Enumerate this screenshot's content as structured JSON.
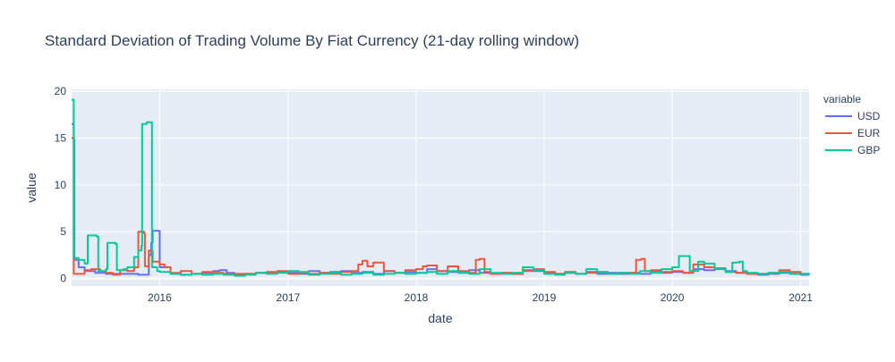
{
  "chart_data": {
    "type": "line",
    "title": "Standard Deviation of Trading Volume By Fiat Currency (21-day rolling window)",
    "xlabel": "date",
    "ylabel": "value",
    "x_range": [
      "2015-04-25",
      "2021-01-25"
    ],
    "ylim": [
      -0.8,
      20.2
    ],
    "x_ticks": [
      {
        "date": "2016-01-01",
        "label": "2016"
      },
      {
        "date": "2017-01-01",
        "label": "2017"
      },
      {
        "date": "2018-01-01",
        "label": "2018"
      },
      {
        "date": "2019-01-01",
        "label": "2019"
      },
      {
        "date": "2020-01-01",
        "label": "2020"
      },
      {
        "date": "2021-01-01",
        "label": "2021"
      }
    ],
    "y_ticks": [
      0,
      5,
      10,
      15,
      20
    ],
    "grid": true,
    "legend": {
      "title": "variable",
      "position": "right"
    },
    "series": [
      {
        "name": "USD",
        "color": "#636efa",
        "points": [
          [
            "2015-04-25",
            16.5
          ],
          [
            "2015-05-01",
            14.8
          ],
          [
            "2015-05-03",
            2.0
          ],
          [
            "2015-05-15",
            1.2
          ],
          [
            "2015-06-01",
            0.8
          ],
          [
            "2015-07-01",
            0.6
          ],
          [
            "2015-08-01",
            0.5
          ],
          [
            "2015-09-01",
            0.5
          ],
          [
            "2015-10-01",
            0.5
          ],
          [
            "2015-11-01",
            0.4
          ],
          [
            "2015-11-25",
            0.4
          ],
          [
            "2015-12-01",
            2.5
          ],
          [
            "2015-12-08",
            3.8
          ],
          [
            "2015-12-12",
            5.1
          ],
          [
            "2015-12-28",
            5.1
          ],
          [
            "2016-01-01",
            1.2
          ],
          [
            "2016-02-01",
            0.5
          ],
          [
            "2016-03-01",
            0.4
          ],
          [
            "2016-04-01",
            0.5
          ],
          [
            "2016-05-01",
            0.6
          ],
          [
            "2016-06-01",
            0.8
          ],
          [
            "2016-06-20",
            0.9
          ],
          [
            "2016-07-10",
            0.6
          ],
          [
            "2016-08-01",
            0.4
          ],
          [
            "2016-09-01",
            0.5
          ],
          [
            "2016-10-01",
            0.6
          ],
          [
            "2016-11-01",
            0.6
          ],
          [
            "2016-12-01",
            0.7
          ],
          [
            "2017-01-01",
            0.6
          ],
          [
            "2017-02-01",
            0.5
          ],
          [
            "2017-03-01",
            0.8
          ],
          [
            "2017-04-01",
            0.6
          ],
          [
            "2017-05-01",
            0.7
          ],
          [
            "2017-06-01",
            0.8
          ],
          [
            "2017-07-01",
            0.6
          ],
          [
            "2017-08-01",
            0.7
          ],
          [
            "2017-09-01",
            0.5
          ],
          [
            "2017-10-01",
            0.8
          ],
          [
            "2017-11-01",
            0.6
          ],
          [
            "2017-12-01",
            0.7
          ],
          [
            "2018-01-01",
            0.6
          ],
          [
            "2018-02-01",
            1.0
          ],
          [
            "2018-03-01",
            0.8
          ],
          [
            "2018-04-01",
            0.7
          ],
          [
            "2018-05-01",
            0.6
          ],
          [
            "2018-06-01",
            0.9
          ],
          [
            "2018-07-01",
            0.6
          ],
          [
            "2018-08-01",
            0.5
          ],
          [
            "2018-09-01",
            0.6
          ],
          [
            "2018-10-01",
            0.5
          ],
          [
            "2018-11-01",
            0.9
          ],
          [
            "2018-12-01",
            0.8
          ],
          [
            "2019-01-01",
            0.6
          ],
          [
            "2019-02-01",
            0.5
          ],
          [
            "2019-03-01",
            0.6
          ],
          [
            "2019-04-01",
            0.5
          ],
          [
            "2019-05-01",
            0.7
          ],
          [
            "2019-06-01",
            0.5
          ],
          [
            "2019-07-01",
            0.6
          ],
          [
            "2019-08-01",
            0.5
          ],
          [
            "2019-09-01",
            0.6
          ],
          [
            "2019-10-01",
            0.5
          ],
          [
            "2019-11-01",
            0.8
          ],
          [
            "2019-12-01",
            0.6
          ],
          [
            "2020-01-01",
            0.7
          ],
          [
            "2020-02-01",
            0.6
          ],
          [
            "2020-03-01",
            1.0
          ],
          [
            "2020-04-01",
            0.9
          ],
          [
            "2020-05-01",
            1.1
          ],
          [
            "2020-06-01",
            0.8
          ],
          [
            "2020-07-01",
            0.6
          ],
          [
            "2020-08-01",
            0.5
          ],
          [
            "2020-09-01",
            0.4
          ],
          [
            "2020-10-01",
            0.5
          ],
          [
            "2020-11-01",
            0.6
          ],
          [
            "2020-12-01",
            0.5
          ],
          [
            "2021-01-01",
            0.4
          ],
          [
            "2021-01-25",
            0.4
          ]
        ]
      },
      {
        "name": "EUR",
        "color": "#ef553b",
        "points": [
          [
            "2015-04-25",
            15.0
          ],
          [
            "2015-05-01",
            0.5
          ],
          [
            "2015-05-15",
            0.5
          ],
          [
            "2015-06-01",
            0.9
          ],
          [
            "2015-06-20",
            1.0
          ],
          [
            "2015-07-15",
            0.8
          ],
          [
            "2015-08-01",
            0.6
          ],
          [
            "2015-08-20",
            0.4
          ],
          [
            "2015-09-10",
            0.9
          ],
          [
            "2015-10-01",
            0.8
          ],
          [
            "2015-10-20",
            1.2
          ],
          [
            "2015-11-01",
            5.0
          ],
          [
            "2015-11-18",
            4.8
          ],
          [
            "2015-11-20",
            1.3
          ],
          [
            "2015-12-01",
            3.0
          ],
          [
            "2015-12-08",
            2.9
          ],
          [
            "2015-12-12",
            1.8
          ],
          [
            "2016-01-01",
            1.5
          ],
          [
            "2016-01-15",
            1.2
          ],
          [
            "2016-02-01",
            0.6
          ],
          [
            "2016-03-01",
            0.8
          ],
          [
            "2016-04-01",
            0.5
          ],
          [
            "2016-05-01",
            0.7
          ],
          [
            "2016-06-01",
            0.6
          ],
          [
            "2016-07-01",
            0.5
          ],
          [
            "2016-08-01",
            0.5
          ],
          [
            "2016-09-01",
            0.5
          ],
          [
            "2016-10-01",
            0.6
          ],
          [
            "2016-11-01",
            0.7
          ],
          [
            "2016-12-01",
            0.8
          ],
          [
            "2017-01-01",
            0.5
          ],
          [
            "2017-02-01",
            0.6
          ],
          [
            "2017-03-01",
            0.5
          ],
          [
            "2017-04-01",
            0.6
          ],
          [
            "2017-05-01",
            0.5
          ],
          [
            "2017-06-01",
            0.7
          ],
          [
            "2017-07-01",
            0.8
          ],
          [
            "2017-07-20",
            1.5
          ],
          [
            "2017-08-01",
            1.9
          ],
          [
            "2017-08-15",
            1.3
          ],
          [
            "2017-09-01",
            1.7
          ],
          [
            "2017-10-01",
            0.8
          ],
          [
            "2017-11-01",
            0.6
          ],
          [
            "2017-12-01",
            0.9
          ],
          [
            "2018-01-01",
            1.0
          ],
          [
            "2018-01-20",
            1.3
          ],
          [
            "2018-02-01",
            1.4
          ],
          [
            "2018-03-01",
            0.8
          ],
          [
            "2018-04-01",
            1.3
          ],
          [
            "2018-05-01",
            0.8
          ],
          [
            "2018-06-01",
            0.6
          ],
          [
            "2018-06-20",
            2.0
          ],
          [
            "2018-07-01",
            2.1
          ],
          [
            "2018-07-15",
            0.7
          ],
          [
            "2018-08-01",
            0.5
          ],
          [
            "2018-09-01",
            0.6
          ],
          [
            "2018-10-01",
            0.5
          ],
          [
            "2018-11-01",
            0.8
          ],
          [
            "2018-12-01",
            1.0
          ],
          [
            "2019-01-01",
            0.7
          ],
          [
            "2019-02-01",
            0.5
          ],
          [
            "2019-03-01",
            0.7
          ],
          [
            "2019-04-01",
            0.5
          ],
          [
            "2019-05-01",
            0.6
          ],
          [
            "2019-06-01",
            0.7
          ],
          [
            "2019-07-01",
            0.5
          ],
          [
            "2019-08-01",
            0.6
          ],
          [
            "2019-09-01",
            0.6
          ],
          [
            "2019-09-20",
            2.0
          ],
          [
            "2019-10-05",
            2.1
          ],
          [
            "2019-10-15",
            0.8
          ],
          [
            "2019-11-01",
            0.9
          ],
          [
            "2019-12-01",
            0.7
          ],
          [
            "2020-01-01",
            0.8
          ],
          [
            "2020-02-01",
            0.6
          ],
          [
            "2020-03-01",
            1.5
          ],
          [
            "2020-04-01",
            1.2
          ],
          [
            "2020-05-01",
            1.0
          ],
          [
            "2020-06-01",
            0.7
          ],
          [
            "2020-07-01",
            0.6
          ],
          [
            "2020-08-01",
            0.5
          ],
          [
            "2020-09-01",
            0.5
          ],
          [
            "2020-10-01",
            0.6
          ],
          [
            "2020-11-01",
            0.9
          ],
          [
            "2020-12-01",
            0.7
          ],
          [
            "2021-01-01",
            0.5
          ],
          [
            "2021-01-25",
            0.4
          ]
        ]
      },
      {
        "name": "GBP",
        "color": "#00cc96",
        "points": [
          [
            "2015-04-25",
            19.1
          ],
          [
            "2015-05-01",
            2.2
          ],
          [
            "2015-05-15",
            2.0
          ],
          [
            "2015-06-01",
            1.6
          ],
          [
            "2015-06-10",
            4.6
          ],
          [
            "2015-07-05",
            4.5
          ],
          [
            "2015-07-10",
            0.8
          ],
          [
            "2015-08-01",
            1.0
          ],
          [
            "2015-08-05",
            3.8
          ],
          [
            "2015-08-28",
            3.7
          ],
          [
            "2015-09-01",
            0.9
          ],
          [
            "2015-09-20",
            1.0
          ],
          [
            "2015-10-01",
            1.2
          ],
          [
            "2015-10-20",
            2.3
          ],
          [
            "2015-11-01",
            3.0
          ],
          [
            "2015-11-10",
            3.5
          ],
          [
            "2015-11-12",
            16.5
          ],
          [
            "2015-11-25",
            16.7
          ],
          [
            "2015-12-05",
            16.7
          ],
          [
            "2015-12-10",
            1.2
          ],
          [
            "2015-12-25",
            0.8
          ],
          [
            "2016-01-01",
            0.7
          ],
          [
            "2016-02-01",
            0.5
          ],
          [
            "2016-03-01",
            0.4
          ],
          [
            "2016-04-01",
            0.5
          ],
          [
            "2016-05-01",
            0.4
          ],
          [
            "2016-06-01",
            0.5
          ],
          [
            "2016-07-01",
            0.4
          ],
          [
            "2016-08-01",
            0.3
          ],
          [
            "2016-09-01",
            0.4
          ],
          [
            "2016-10-01",
            0.6
          ],
          [
            "2016-11-01",
            0.5
          ],
          [
            "2016-12-01",
            0.6
          ],
          [
            "2017-01-01",
            0.8
          ],
          [
            "2017-02-01",
            0.7
          ],
          [
            "2017-03-01",
            0.4
          ],
          [
            "2017-04-01",
            0.5
          ],
          [
            "2017-05-01",
            0.6
          ],
          [
            "2017-06-01",
            0.4
          ],
          [
            "2017-07-01",
            0.5
          ],
          [
            "2017-08-01",
            0.6
          ],
          [
            "2017-09-01",
            0.4
          ],
          [
            "2017-10-01",
            0.5
          ],
          [
            "2017-11-01",
            0.6
          ],
          [
            "2017-12-01",
            0.5
          ],
          [
            "2018-01-01",
            0.6
          ],
          [
            "2018-02-01",
            0.7
          ],
          [
            "2018-03-01",
            0.5
          ],
          [
            "2018-04-01",
            0.8
          ],
          [
            "2018-05-01",
            0.6
          ],
          [
            "2018-06-01",
            0.5
          ],
          [
            "2018-07-01",
            1.0
          ],
          [
            "2018-08-01",
            0.6
          ],
          [
            "2018-09-01",
            0.5
          ],
          [
            "2018-10-01",
            0.6
          ],
          [
            "2018-11-01",
            1.2
          ],
          [
            "2018-12-01",
            0.9
          ],
          [
            "2019-01-01",
            0.5
          ],
          [
            "2019-02-01",
            0.4
          ],
          [
            "2019-03-01",
            0.6
          ],
          [
            "2019-04-01",
            0.5
          ],
          [
            "2019-05-01",
            1.0
          ],
          [
            "2019-06-01",
            0.7
          ],
          [
            "2019-07-01",
            0.5
          ],
          [
            "2019-08-01",
            0.6
          ],
          [
            "2019-09-01",
            0.5
          ],
          [
            "2019-10-01",
            0.8
          ],
          [
            "2019-11-01",
            0.6
          ],
          [
            "2019-12-01",
            1.0
          ],
          [
            "2020-01-01",
            1.2
          ],
          [
            "2020-01-20",
            2.4
          ],
          [
            "2020-02-10",
            2.4
          ],
          [
            "2020-02-20",
            0.8
          ],
          [
            "2020-03-15",
            1.8
          ],
          [
            "2020-04-01",
            1.6
          ],
          [
            "2020-05-01",
            1.0
          ],
          [
            "2020-06-01",
            0.7
          ],
          [
            "2020-06-20",
            1.7
          ],
          [
            "2020-07-10",
            1.8
          ],
          [
            "2020-07-20",
            0.8
          ],
          [
            "2020-08-01",
            0.6
          ],
          [
            "2020-09-01",
            0.5
          ],
          [
            "2020-10-01",
            0.6
          ],
          [
            "2020-11-01",
            0.7
          ],
          [
            "2020-12-01",
            0.5
          ],
          [
            "2021-01-01",
            0.5
          ],
          [
            "2021-01-25",
            0.4
          ]
        ]
      }
    ]
  }
}
